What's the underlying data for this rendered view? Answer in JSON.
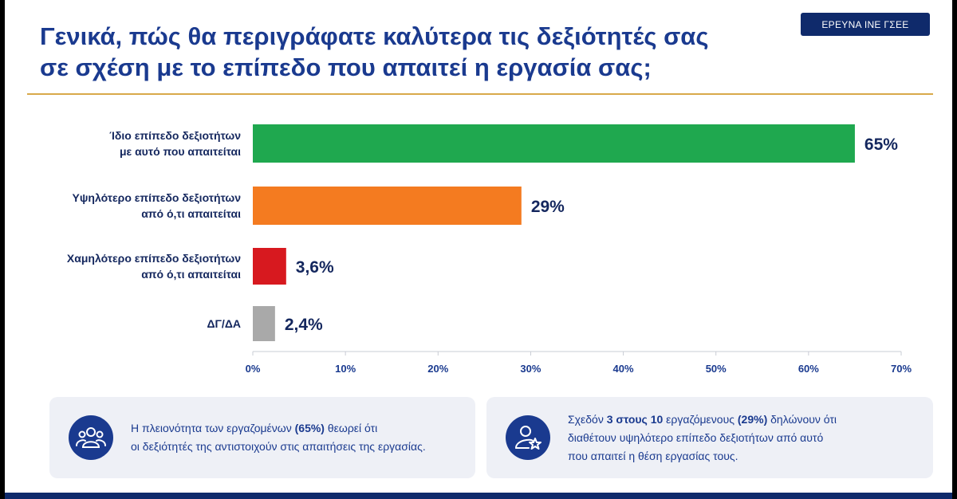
{
  "header": {
    "title_line1": "Γενικά, πώς θα περιγράφατε καλύτερα τις δεξιότητές σας",
    "title_line2": "σε σχέση με το επίπεδο που απαιτεί η εργασία σας;",
    "badge": "ΕΡΕΥΝΑ ΙΝΕ ΓΣΕΕ"
  },
  "colors": {
    "accent": "#1a3a8f",
    "rule": "#d8a94a",
    "bar_green": "#1fa84f",
    "bar_orange": "#f47b20",
    "bar_red": "#d7191f",
    "bar_grey": "#a9a9a9"
  },
  "chart_data": {
    "type": "bar",
    "orientation": "horizontal",
    "categories": [
      [
        "Ίδιο επίπεδο δεξιοτήτων",
        "με αυτό που απαιτείται"
      ],
      [
        "Υψηλότερο επίπεδο δεξιοτήτων",
        "από ό,τι απαιτείται"
      ],
      [
        "Χαμηλότερο επίπεδο δεξιοτήτων",
        "από ό,τι απαιτείται"
      ],
      [
        "ΔΓ/ΔΑ"
      ]
    ],
    "values": [
      65,
      29,
      3.6,
      2.4
    ],
    "value_labels": [
      "65%",
      "29%",
      "3,6%",
      "2,4%"
    ],
    "bar_colors": [
      "#1fa84f",
      "#f47b20",
      "#d7191f",
      "#a9a9a9"
    ],
    "xlim": [
      0,
      70
    ],
    "ticks": [
      0,
      10,
      20,
      30,
      40,
      50,
      60,
      70
    ],
    "tick_labels": [
      "0%",
      "10%",
      "20%",
      "30%",
      "40%",
      "50%",
      "60%",
      "70%"
    ],
    "grid": false,
    "legend": "none"
  },
  "notes": [
    {
      "icon": "group-icon",
      "lines": [
        [
          {
            "t": "Η πλειονότητα των εργαζομένων "
          },
          {
            "t": "(65%)",
            "b": true
          },
          {
            "t": " θεωρεί ότι"
          }
        ],
        [
          {
            "t": "οι δεξιότητές της αντιστοιχούν στις απαιτήσεις της εργασίας."
          }
        ]
      ]
    },
    {
      "icon": "user-star-icon",
      "lines": [
        [
          {
            "t": "Σχεδόν "
          },
          {
            "t": "3 στους 10",
            "b": true
          },
          {
            "t": " εργαζόμενους "
          },
          {
            "t": "(29%)",
            "b": true
          },
          {
            "t": " δηλώνουν ότι"
          }
        ],
        [
          {
            "t": "διαθέτουν υψηλότερο επίπεδο δεξιοτήτων από αυτό"
          }
        ],
        [
          {
            "t": "που απαιτεί η θέση εργασίας τους."
          }
        ]
      ]
    }
  ]
}
